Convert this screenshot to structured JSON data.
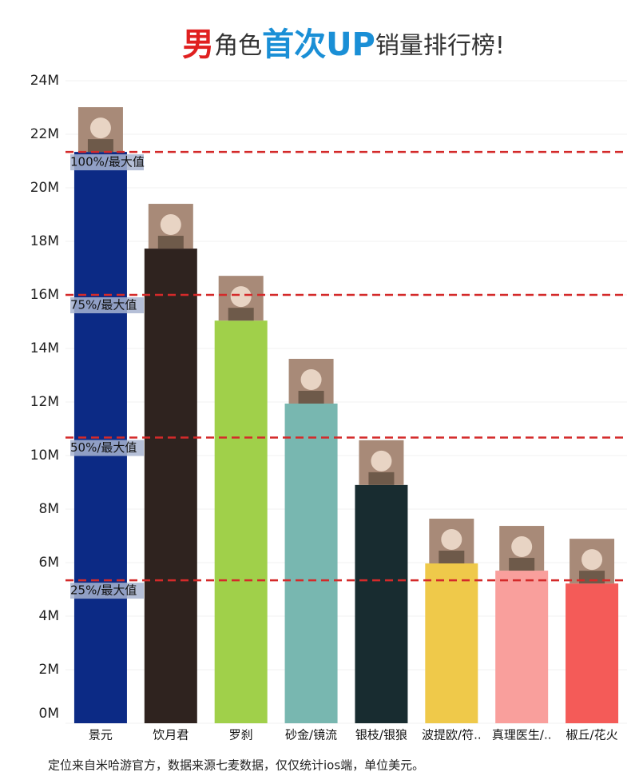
{
  "chart_data": {
    "type": "bar",
    "title": [
      "男",
      "角色",
      "首次UP",
      "销量排行榜!"
    ],
    "title_colors": [
      "#e02020",
      "#333333",
      "#1a8fd6",
      "#333333"
    ],
    "categories": [
      "景元",
      "饮月君",
      "罗刹",
      "砂金/镜流",
      "银枝/银狼",
      "波提欧/符..",
      "真理医生/..",
      "椒丘/花火"
    ],
    "values": [
      21.34,
      17.73,
      15.04,
      11.94,
      8.9,
      5.97,
      5.7,
      5.22
    ],
    "colors": [
      "#0c2a85",
      "#2f231f",
      "#a0d04a",
      "#78b7b0",
      "#182c30",
      "#efc94a",
      "#f99f9c",
      "#f45b58"
    ],
    "ylim": [
      0,
      24
    ],
    "yticks": [
      {
        "value": 0,
        "label": "0M"
      },
      {
        "value": 2,
        "label": "2M"
      },
      {
        "value": 4,
        "label": "4M"
      },
      {
        "value": 6,
        "label": "6M"
      },
      {
        "value": 8,
        "label": "8M"
      },
      {
        "value": 10,
        "label": "10M"
      },
      {
        "value": 12,
        "label": "12M"
      },
      {
        "value": 14,
        "label": "14M"
      },
      {
        "value": 16,
        "label": "16M"
      },
      {
        "value": 18,
        "label": "18M"
      },
      {
        "value": 20,
        "label": "20M"
      },
      {
        "value": 22,
        "label": "22M"
      },
      {
        "value": 24,
        "label": "24M"
      }
    ],
    "reference_lines": [
      {
        "value": 21.34,
        "label": "100%/最大值"
      },
      {
        "value": 16.0,
        "label": "75%/最大值"
      },
      {
        "value": 10.67,
        "label": "50%/最大值"
      },
      {
        "value": 5.34,
        "label": "25%/最大值"
      }
    ],
    "reference_color": "#d42a2a",
    "grid": true,
    "footnote": "定位来自米哈游官方，数据来源七麦数据，仅仅统计ios端，单位美元。"
  }
}
